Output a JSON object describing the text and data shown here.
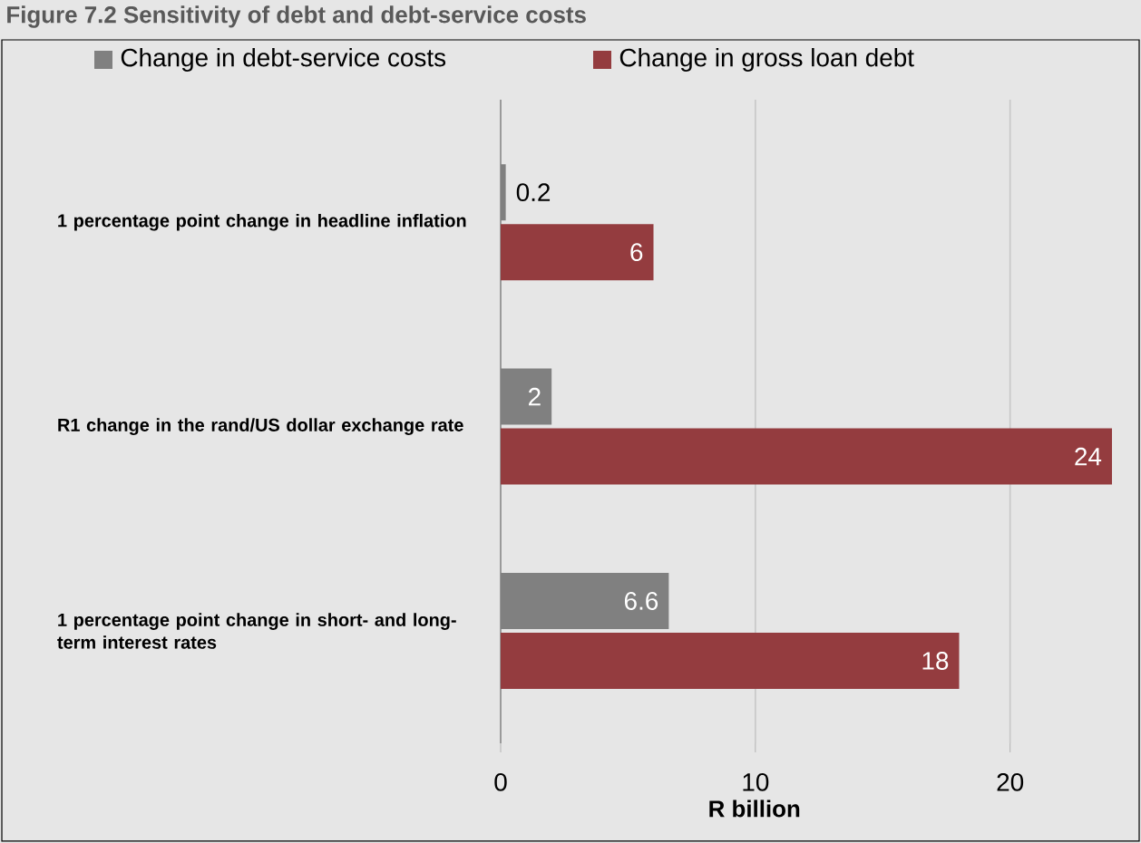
{
  "chart_data": {
    "type": "bar",
    "orientation": "horizontal",
    "title": "Figure 7.2 Sensitivity of debt and debt-service costs",
    "xlabel": "R billion",
    "categories": [
      "1 percentage point change in headline inflation",
      "R1 change in the rand/US dollar exchange rate",
      "1 percentage point change in short- and long-term interest rates"
    ],
    "series": [
      {
        "name": "Change in debt-service costs",
        "color": "#808080",
        "values": [
          0.2,
          2,
          6.6
        ]
      },
      {
        "name": "Change in gross loan debt",
        "color": "#943c3f",
        "values": [
          6,
          24,
          18
        ]
      }
    ],
    "xlim": [
      0,
      24
    ],
    "xticks": [
      0,
      10,
      20
    ],
    "grid": "x",
    "legend": "top",
    "data_labels": true
  }
}
